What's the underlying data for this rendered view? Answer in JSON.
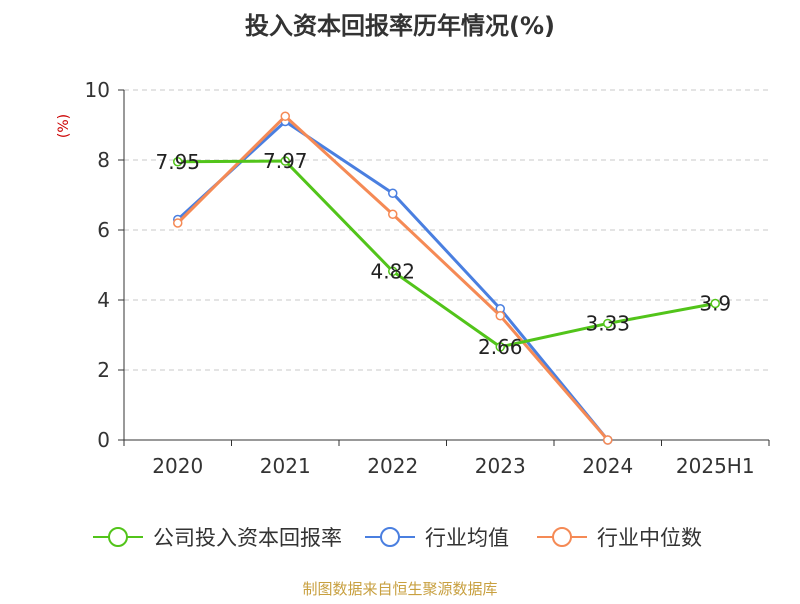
{
  "chart_data": {
    "type": "line",
    "title": "投入资本回报率历年情况(%)",
    "ylabel": "(%)",
    "xlabel": "",
    "ylim": [
      0,
      10
    ],
    "yticks": [
      0,
      2,
      4,
      6,
      8,
      10
    ],
    "grid": true,
    "legend_position": "bottom",
    "categories": [
      "2020",
      "2021",
      "2022",
      "2023",
      "2024",
      "2025H1"
    ],
    "series": [
      {
        "name": "公司投入资本回报率",
        "color": "#52c41a",
        "values": [
          7.95,
          7.97,
          4.82,
          2.66,
          3.33,
          3.9
        ],
        "labels": [
          "7.95",
          "7.97",
          "4.82",
          "2.66",
          "3.33",
          "3.9"
        ]
      },
      {
        "name": "行业均值",
        "color": "#4a7fe0",
        "values": [
          6.3,
          9.1,
          7.05,
          3.75,
          0.0,
          null
        ]
      },
      {
        "name": "行业中位数",
        "color": "#f58a55",
        "values": [
          6.2,
          9.25,
          6.45,
          3.55,
          0.0,
          null
        ]
      }
    ],
    "source": "制图数据来自恒生聚源数据库"
  }
}
